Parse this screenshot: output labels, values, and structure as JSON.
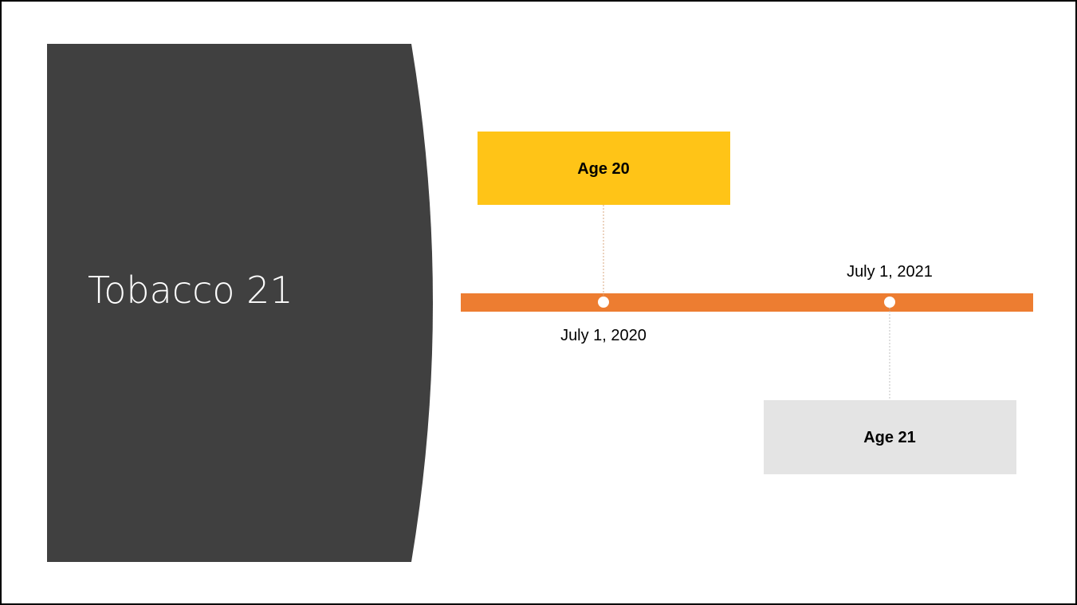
{
  "title": "Tobacco 21",
  "milestones": [
    {
      "date": "July 1, 2020",
      "label": "Age 20"
    },
    {
      "date": "July 1, 2021",
      "label": "Age 21"
    }
  ]
}
